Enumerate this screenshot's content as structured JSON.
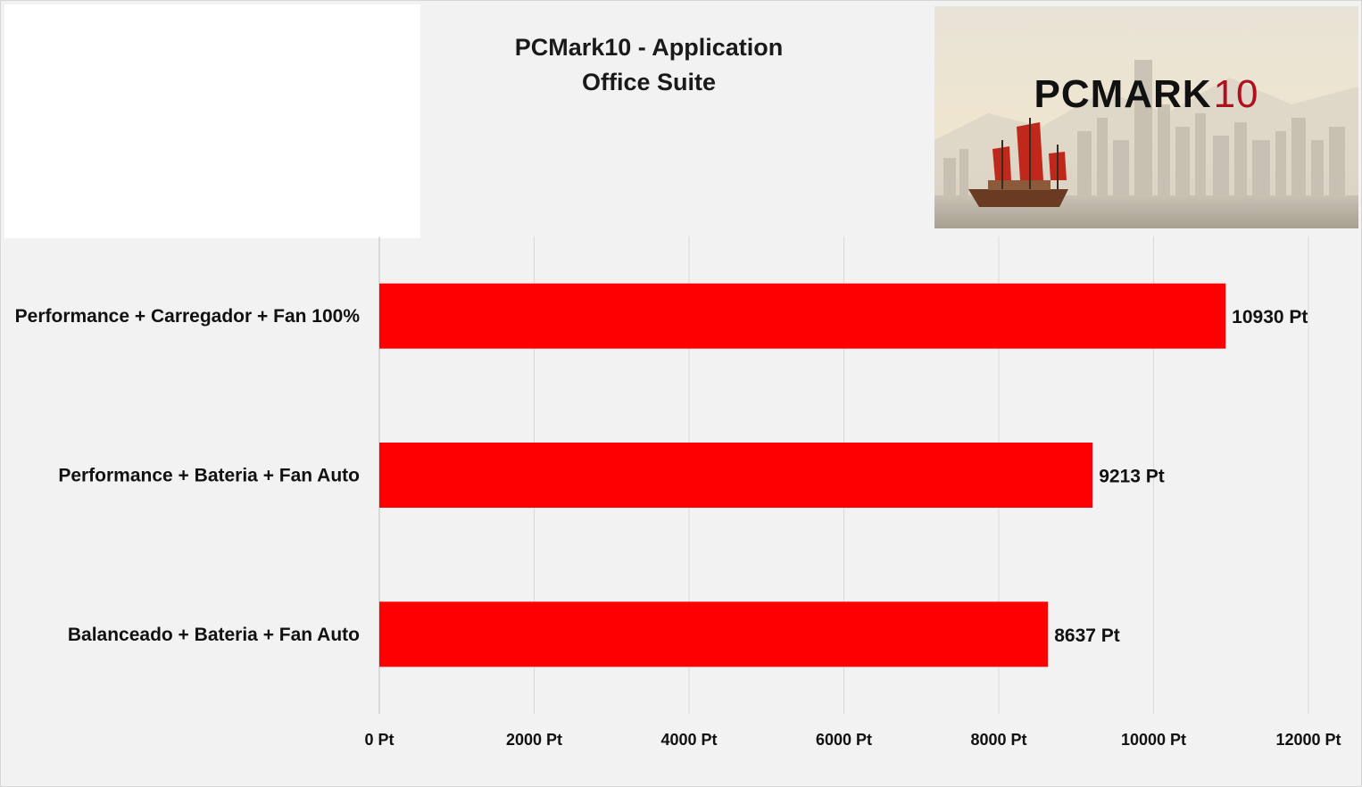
{
  "chart_data": {
    "type": "bar",
    "orientation": "horizontal",
    "title_lines": [
      "PCMark10 - Application",
      "Office Suite"
    ],
    "categories": [
      "Performance + Carregador + Fan 100%",
      "Performance + Bateria + Fan Auto",
      "Balanceado + Bateria + Fan Auto"
    ],
    "values": [
      10930,
      9213,
      8637
    ],
    "value_labels": [
      "10930 Pt",
      "9213 Pt",
      "8637 Pt"
    ],
    "xlim": [
      0,
      12000
    ],
    "x_ticks": [
      0,
      2000,
      4000,
      6000,
      8000,
      10000,
      12000
    ],
    "x_tick_labels": [
      "0 Pt",
      "2000 Pt",
      "4000 Pt",
      "6000 Pt",
      "8000 Pt",
      "10000 Pt",
      "12000 Pt"
    ],
    "xlabel": "",
    "ylabel": "",
    "grid": "vertical gridlines",
    "legend": "none",
    "bar_color": "#ff0000"
  },
  "logo": {
    "text_main": "PCMARK",
    "text_num": "10",
    "num_color": "#b0101e"
  }
}
